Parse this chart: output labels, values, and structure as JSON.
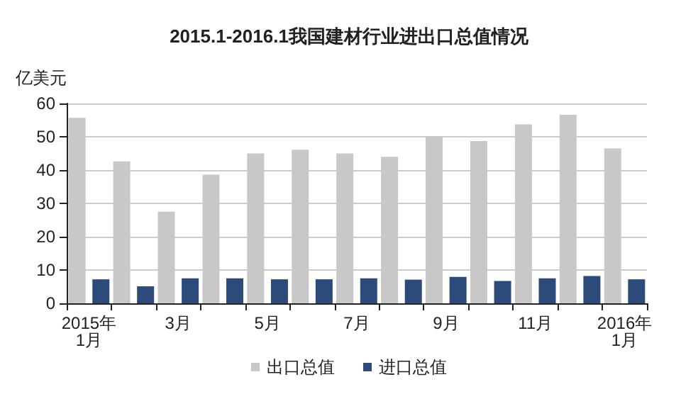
{
  "chart_data": {
    "type": "bar",
    "title": "2015.1-2016.1我国建材行业进出口总值情况",
    "ylabel": "亿美元",
    "categories": [
      "2015年1月",
      null,
      "3月",
      null,
      "5月",
      null,
      "7月",
      null,
      "9月",
      null,
      "11月",
      null,
      "2016年1月"
    ],
    "series": [
      {
        "name": "出口总值",
        "color": "#c8c8c8",
        "values": [
          55.7,
          42.6,
          27.5,
          38.6,
          45.0,
          46.1,
          45.0,
          44.0,
          50.0,
          48.7,
          53.7,
          56.6,
          46.5
        ]
      },
      {
        "name": "进口总值",
        "color": "#2c4a7a",
        "values": [
          7.2,
          5.1,
          7.5,
          7.5,
          7.2,
          7.2,
          7.5,
          7.1,
          7.9,
          6.7,
          7.5,
          8.2,
          7.2
        ]
      }
    ],
    "ylim": [
      0,
      60
    ],
    "yticks": [
      0,
      10,
      20,
      30,
      40,
      50,
      60
    ],
    "grid": "y",
    "legend": "bottom"
  }
}
